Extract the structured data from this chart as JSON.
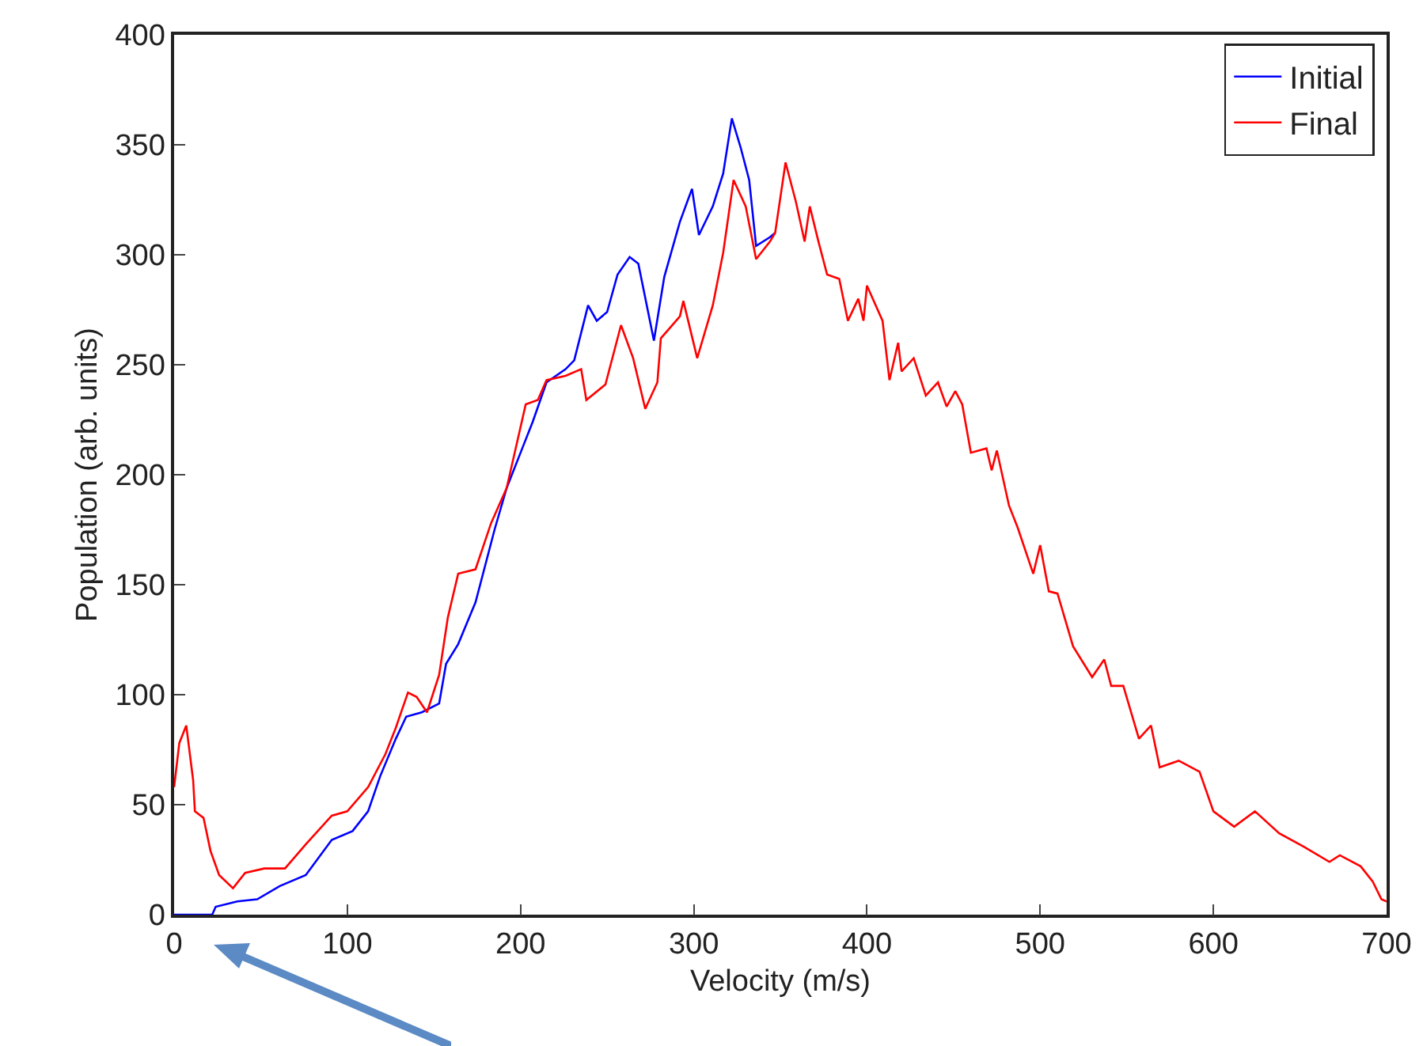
{
  "chart_data": {
    "type": "line",
    "xlabel": "Velocity (m/s)",
    "ylabel": "Population (arb. units)",
    "xlim": [
      0,
      700
    ],
    "ylim": [
      0,
      400
    ],
    "xticks": [
      0,
      100,
      200,
      300,
      400,
      500,
      600,
      700
    ],
    "yticks": [
      0,
      50,
      100,
      150,
      200,
      250,
      300,
      350,
      400
    ],
    "grid": false,
    "legend": "top right",
    "marker": "none",
    "line_style": "solid",
    "series": [
      {
        "name": "Initial",
        "color": "#0000ff",
        "x": [
          0,
          22,
          24,
          36.5,
          48,
          61,
          76,
          91,
          103,
          112,
          119,
          128,
          134,
          143,
          153,
          157,
          164,
          174,
          185,
          192,
          201,
          207,
          215,
          226,
          231,
          239,
          244,
          250,
          256,
          263,
          268,
          277,
          283,
          292,
          299,
          303,
          311,
          317,
          322,
          327,
          332,
          336,
          344,
          347
        ],
        "values": [
          0,
          0,
          3.6,
          6,
          7,
          13,
          18,
          34,
          38,
          47,
          63,
          80,
          90,
          92,
          96,
          114,
          123,
          142,
          175,
          194,
          212,
          224,
          242,
          248,
          252,
          277,
          270,
          274,
          291,
          299,
          296,
          261,
          290,
          315,
          330,
          309,
          322,
          337,
          362,
          349,
          334,
          304,
          308,
          310
        ]
      },
      {
        "name": "Final",
        "color": "#ff0000",
        "x": [
          0,
          3,
          7,
          11,
          12,
          17,
          21,
          26,
          34,
          41,
          52,
          64,
          76,
          91,
          100,
          112,
          122,
          128,
          135,
          140,
          146,
          153,
          158,
          164,
          174,
          183,
          192,
          203,
          210,
          215,
          226,
          235,
          238,
          249,
          258,
          265,
          272,
          279,
          281,
          292,
          294,
          302,
          311,
          317,
          323,
          330,
          336,
          344,
          347,
          353,
          359,
          364,
          367,
          372,
          377,
          384,
          389,
          395,
          398,
          400,
          409,
          413,
          418,
          420,
          427,
          434,
          441,
          446,
          451,
          455,
          460,
          469,
          472,
          475,
          482,
          487,
          496,
          500,
          505,
          510,
          519,
          530,
          537,
          541,
          548,
          557,
          564,
          569,
          580,
          592,
          600,
          612,
          624,
          638,
          652,
          667,
          673,
          685,
          692,
          697,
          700
        ],
        "values": [
          58,
          78,
          86,
          61,
          47,
          44,
          29,
          18,
          12,
          19,
          21,
          21,
          32,
          45,
          47,
          58,
          73,
          85,
          101,
          99,
          92,
          109,
          135,
          155,
          157,
          178,
          194,
          232,
          234,
          243,
          245,
          248,
          234,
          241,
          268,
          253,
          230,
          242,
          262,
          272,
          279,
          253,
          277,
          301,
          334,
          322,
          298,
          306,
          310,
          342,
          324,
          306,
          322,
          306,
          291,
          289,
          270,
          280,
          270,
          286,
          270,
          243,
          260,
          247,
          253,
          236,
          242,
          231,
          238,
          232,
          210,
          212,
          202,
          211,
          186,
          176,
          155,
          168,
          147,
          146,
          122,
          108,
          116,
          104,
          104,
          80,
          86,
          67,
          70,
          65,
          47,
          40,
          47,
          37,
          31,
          24,
          27,
          22,
          15,
          7,
          6
        ]
      }
    ]
  }
}
